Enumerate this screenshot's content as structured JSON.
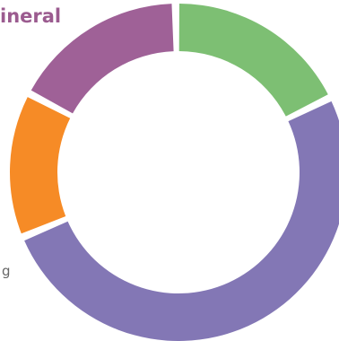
{
  "chart_data": {
    "type": "pie",
    "donut": true,
    "slices": [
      {
        "name": "",
        "value": 0.18,
        "color": "#7dbf73"
      },
      {
        "name": "",
        "value": 0.51,
        "color": "#8377b5"
      },
      {
        "name": "",
        "value": 0.14,
        "color": "#f68b26"
      },
      {
        "name": "",
        "value": 0.17,
        "color": "#9f6197"
      }
    ],
    "start_angle_deg": -1,
    "direction": "clockwise",
    "title": "",
    "legend": "left"
  },
  "legend": {
    "title_fragment": "ineral",
    "left_fragment": "g"
  }
}
